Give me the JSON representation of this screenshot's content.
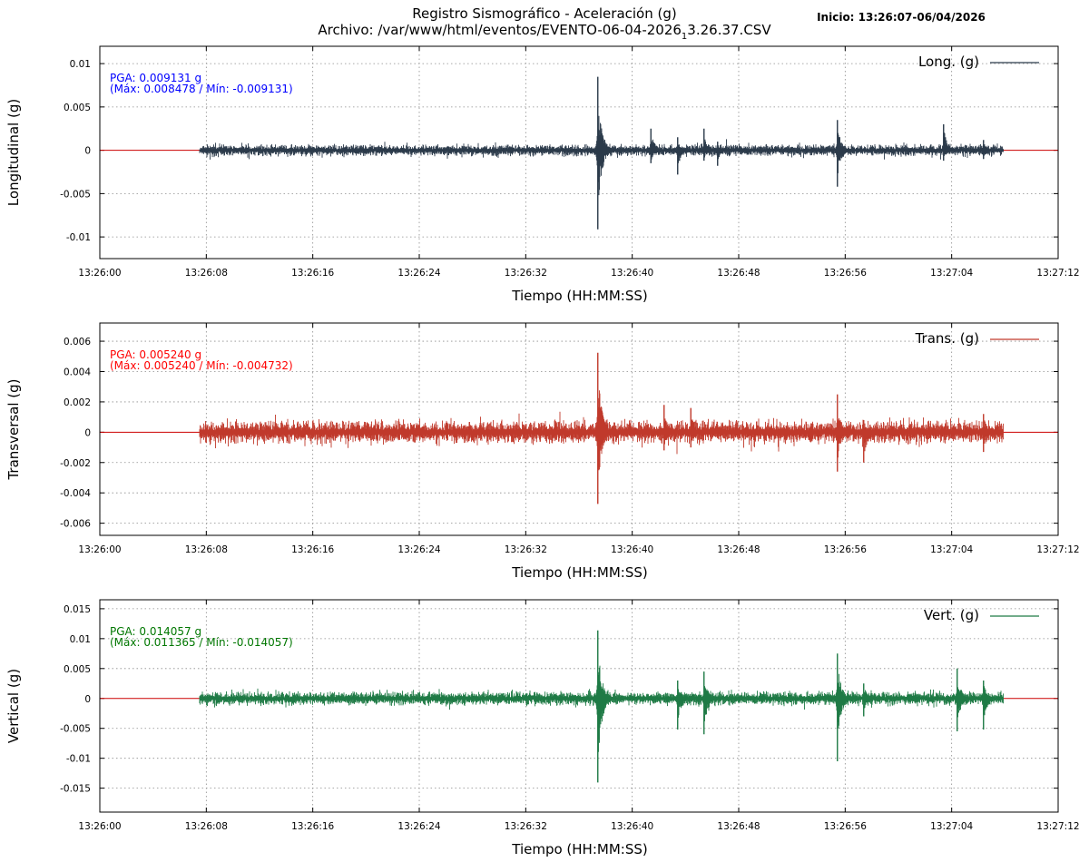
{
  "header": {
    "title_line1": "Registro Sismográfico - Aceleración (g)",
    "title_line2_prefix": "Archivo: /var/www/html/eventos/EVENTO-06-04-2026",
    "title_line2_sub": "1",
    "title_line2_suffix": "3.26.37.CSV",
    "start_label": "Inicio: 13:26:07-06/04/2026"
  },
  "chart_data": [
    {
      "type": "line",
      "series_name": "Long. (g)",
      "color": "#2b3a4a",
      "ylabel": "Longitudinal (g)",
      "xlabel": "Tiempo (HH:MM:SS)",
      "ylim": [
        -0.0125,
        0.012
      ],
      "yticks": [
        0.01,
        0.005,
        0,
        -0.005,
        -0.01
      ],
      "ytick_labels": [
        "0.01",
        "0.005",
        "0",
        "-0.005",
        "-0.01"
      ],
      "xlim": [
        "13:26:00",
        "13:27:12"
      ],
      "xtick_labels": [
        "13:26:00",
        "13:26:08",
        "13:26:16",
        "13:26:24",
        "13:26:32",
        "13:26:40",
        "13:26:48",
        "13:26:56",
        "13:27:04",
        "13:27:12"
      ],
      "signal_range": [
        "13:26:07",
        "13:27:07"
      ],
      "pga": {
        "line1": "PGA: 0.009131 g",
        "line2": "(Máx: 0.008478 / Mín: -0.009131)",
        "color": "#0000ff"
      },
      "max": 0.008478,
      "min": -0.009131,
      "noise_amplitude": 0.0007,
      "events": [
        {
          "t": "13:26:37",
          "max": 0.008478,
          "min": -0.009131
        },
        {
          "t": "13:26:41",
          "max": 0.0025,
          "min": -0.0015
        },
        {
          "t": "13:26:43",
          "max": 0.0015,
          "min": -0.0028
        },
        {
          "t": "13:26:45",
          "max": 0.0025,
          "min": -0.0012
        },
        {
          "t": "13:26:46",
          "max": 0.001,
          "min": -0.0018
        },
        {
          "t": "13:26:55",
          "max": 0.0035,
          "min": -0.0042
        },
        {
          "t": "13:27:03",
          "max": 0.003,
          "min": -0.0012
        },
        {
          "t": "13:27:06",
          "max": 0.0012,
          "min": -0.001
        }
      ],
      "grid": true,
      "legend_position": "top-right"
    },
    {
      "type": "line",
      "series_name": "Trans. (g)",
      "color": "#c0392b",
      "ylabel": "Transversal (g)",
      "xlabel": "Tiempo (HH:MM:SS)",
      "ylim": [
        -0.0068,
        0.0072
      ],
      "yticks": [
        0.006,
        0.004,
        0.002,
        0,
        -0.002,
        -0.004,
        -0.006
      ],
      "ytick_labels": [
        "0.006",
        "0.004",
        "0.002",
        "0",
        "-0.002",
        "-0.004",
        "-0.006"
      ],
      "xlim": [
        "13:26:00",
        "13:27:12"
      ],
      "xtick_labels": [
        "13:26:00",
        "13:26:08",
        "13:26:16",
        "13:26:24",
        "13:26:32",
        "13:26:40",
        "13:26:48",
        "13:26:56",
        "13:27:04",
        "13:27:12"
      ],
      "signal_range": [
        "13:26:07",
        "13:27:07"
      ],
      "pga": {
        "line1": "PGA: 0.005240 g",
        "line2": "(Máx: 0.005240 / Mín: -0.004732)",
        "color": "#ff0000"
      },
      "max": 0.00524,
      "min": -0.004732,
      "noise_amplitude": 0.0008,
      "events": [
        {
          "t": "13:26:37",
          "max": 0.00524,
          "min": -0.004732
        },
        {
          "t": "13:26:42",
          "max": 0.0018,
          "min": -0.0012
        },
        {
          "t": "13:26:44",
          "max": 0.0016,
          "min": -0.001
        },
        {
          "t": "13:26:55",
          "max": 0.0025,
          "min": -0.0026
        },
        {
          "t": "13:26:57",
          "max": 0.0008,
          "min": -0.002
        },
        {
          "t": "13:27:06",
          "max": 0.0012,
          "min": -0.0013
        }
      ],
      "grid": true,
      "legend_position": "top-right"
    },
    {
      "type": "line",
      "series_name": "Vert. (g)",
      "color": "#1e7a45",
      "ylabel": "Vertical (g)",
      "xlabel": "Tiempo (HH:MM:SS)",
      "ylim": [
        -0.019,
        0.0165
      ],
      "yticks": [
        0.015,
        0.01,
        0.005,
        0,
        -0.005,
        -0.01,
        -0.015
      ],
      "ytick_labels": [
        "0.015",
        "0.01",
        "0.005",
        "0",
        "-0.005",
        "-0.01",
        "-0.015"
      ],
      "xlim": [
        "13:26:00",
        "13:27:12"
      ],
      "xtick_labels": [
        "13:26:00",
        "13:26:08",
        "13:26:16",
        "13:26:24",
        "13:26:32",
        "13:26:40",
        "13:26:48",
        "13:26:56",
        "13:27:04",
        "13:27:12"
      ],
      "signal_range": [
        "13:26:07",
        "13:27:07"
      ],
      "pga": {
        "line1": "PGA: 0.014057 g",
        "line2": "(Máx: 0.011365 / Mín: -0.014057)",
        "color": "#007700"
      },
      "max": 0.011365,
      "min": -0.014057,
      "noise_amplitude": 0.0012,
      "events": [
        {
          "t": "13:26:37",
          "max": 0.011365,
          "min": -0.014057
        },
        {
          "t": "13:26:43",
          "max": 0.003,
          "min": -0.0052
        },
        {
          "t": "13:26:45",
          "max": 0.0045,
          "min": -0.006
        },
        {
          "t": "13:26:55",
          "max": 0.0075,
          "min": -0.0105
        },
        {
          "t": "13:26:57",
          "max": 0.0025,
          "min": -0.003
        },
        {
          "t": "13:27:04",
          "max": 0.005,
          "min": -0.0055
        },
        {
          "t": "13:27:06",
          "max": 0.003,
          "min": -0.0052
        }
      ],
      "grid": true,
      "legend_position": "top-right"
    }
  ]
}
